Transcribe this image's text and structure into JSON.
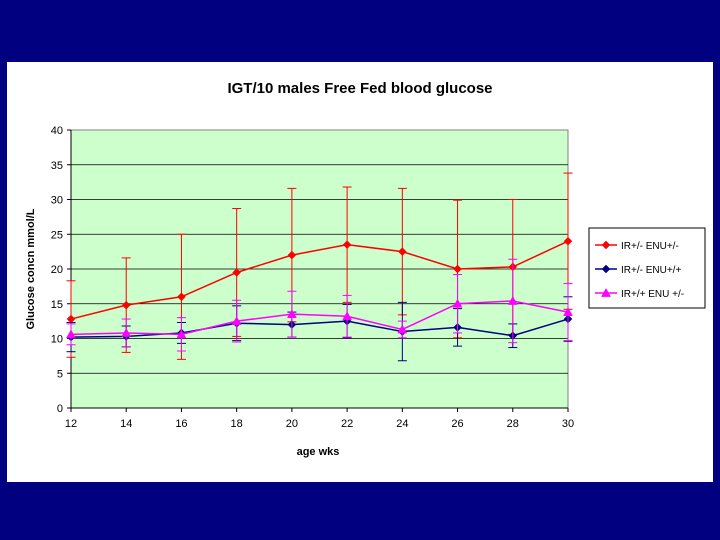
{
  "chart_data": {
    "type": "line",
    "title": "IGT/10 males Free Fed blood glucose",
    "xlabel": "age wks",
    "ylabel": "Glucose concn mmol/L",
    "x": [
      12,
      14,
      16,
      18,
      20,
      22,
      24,
      26,
      28,
      30
    ],
    "xlim": [
      12,
      30
    ],
    "ylim": [
      0,
      40
    ],
    "yticks": [
      0,
      5,
      10,
      15,
      20,
      25,
      30,
      35,
      40
    ],
    "grid": true,
    "legend_position": "right",
    "colors": {
      "plot_bg": "#ccffcc",
      "page_bg": "#000080",
      "panel_bg": "#ffffff"
    },
    "series": [
      {
        "name": "IR+/-  ENU+/-",
        "color": "#ff0000",
        "marker": "diamond",
        "values": [
          12.8,
          14.8,
          16.0,
          19.5,
          22.0,
          23.5,
          22.5,
          20.0,
          20.3,
          24.0
        ],
        "error": [
          5.5,
          6.8,
          9.0,
          9.2,
          9.6,
          8.3,
          9.1,
          9.9,
          9.7,
          9.8
        ]
      },
      {
        "name": "IR+/-  ENU+/+",
        "color": "#000080",
        "marker": "diamond",
        "values": [
          10.2,
          10.3,
          10.8,
          12.2,
          12.0,
          12.5,
          11.0,
          11.6,
          10.4,
          12.8
        ],
        "error": [
          2.1,
          1.5,
          1.5,
          2.5,
          1.8,
          2.4,
          4.2,
          2.7,
          1.7,
          3.2
        ]
      },
      {
        "name": "IR+/+  ENU +/-",
        "color": "#ff00ff",
        "marker": "triangle",
        "values": [
          10.6,
          10.8,
          10.6,
          12.5,
          13.5,
          13.2,
          11.3,
          15.0,
          15.4,
          13.8
        ],
        "error": [
          1.5,
          2.0,
          2.4,
          3.0,
          3.3,
          3.0,
          1.2,
          4.2,
          6.0,
          4.1
        ]
      }
    ]
  }
}
